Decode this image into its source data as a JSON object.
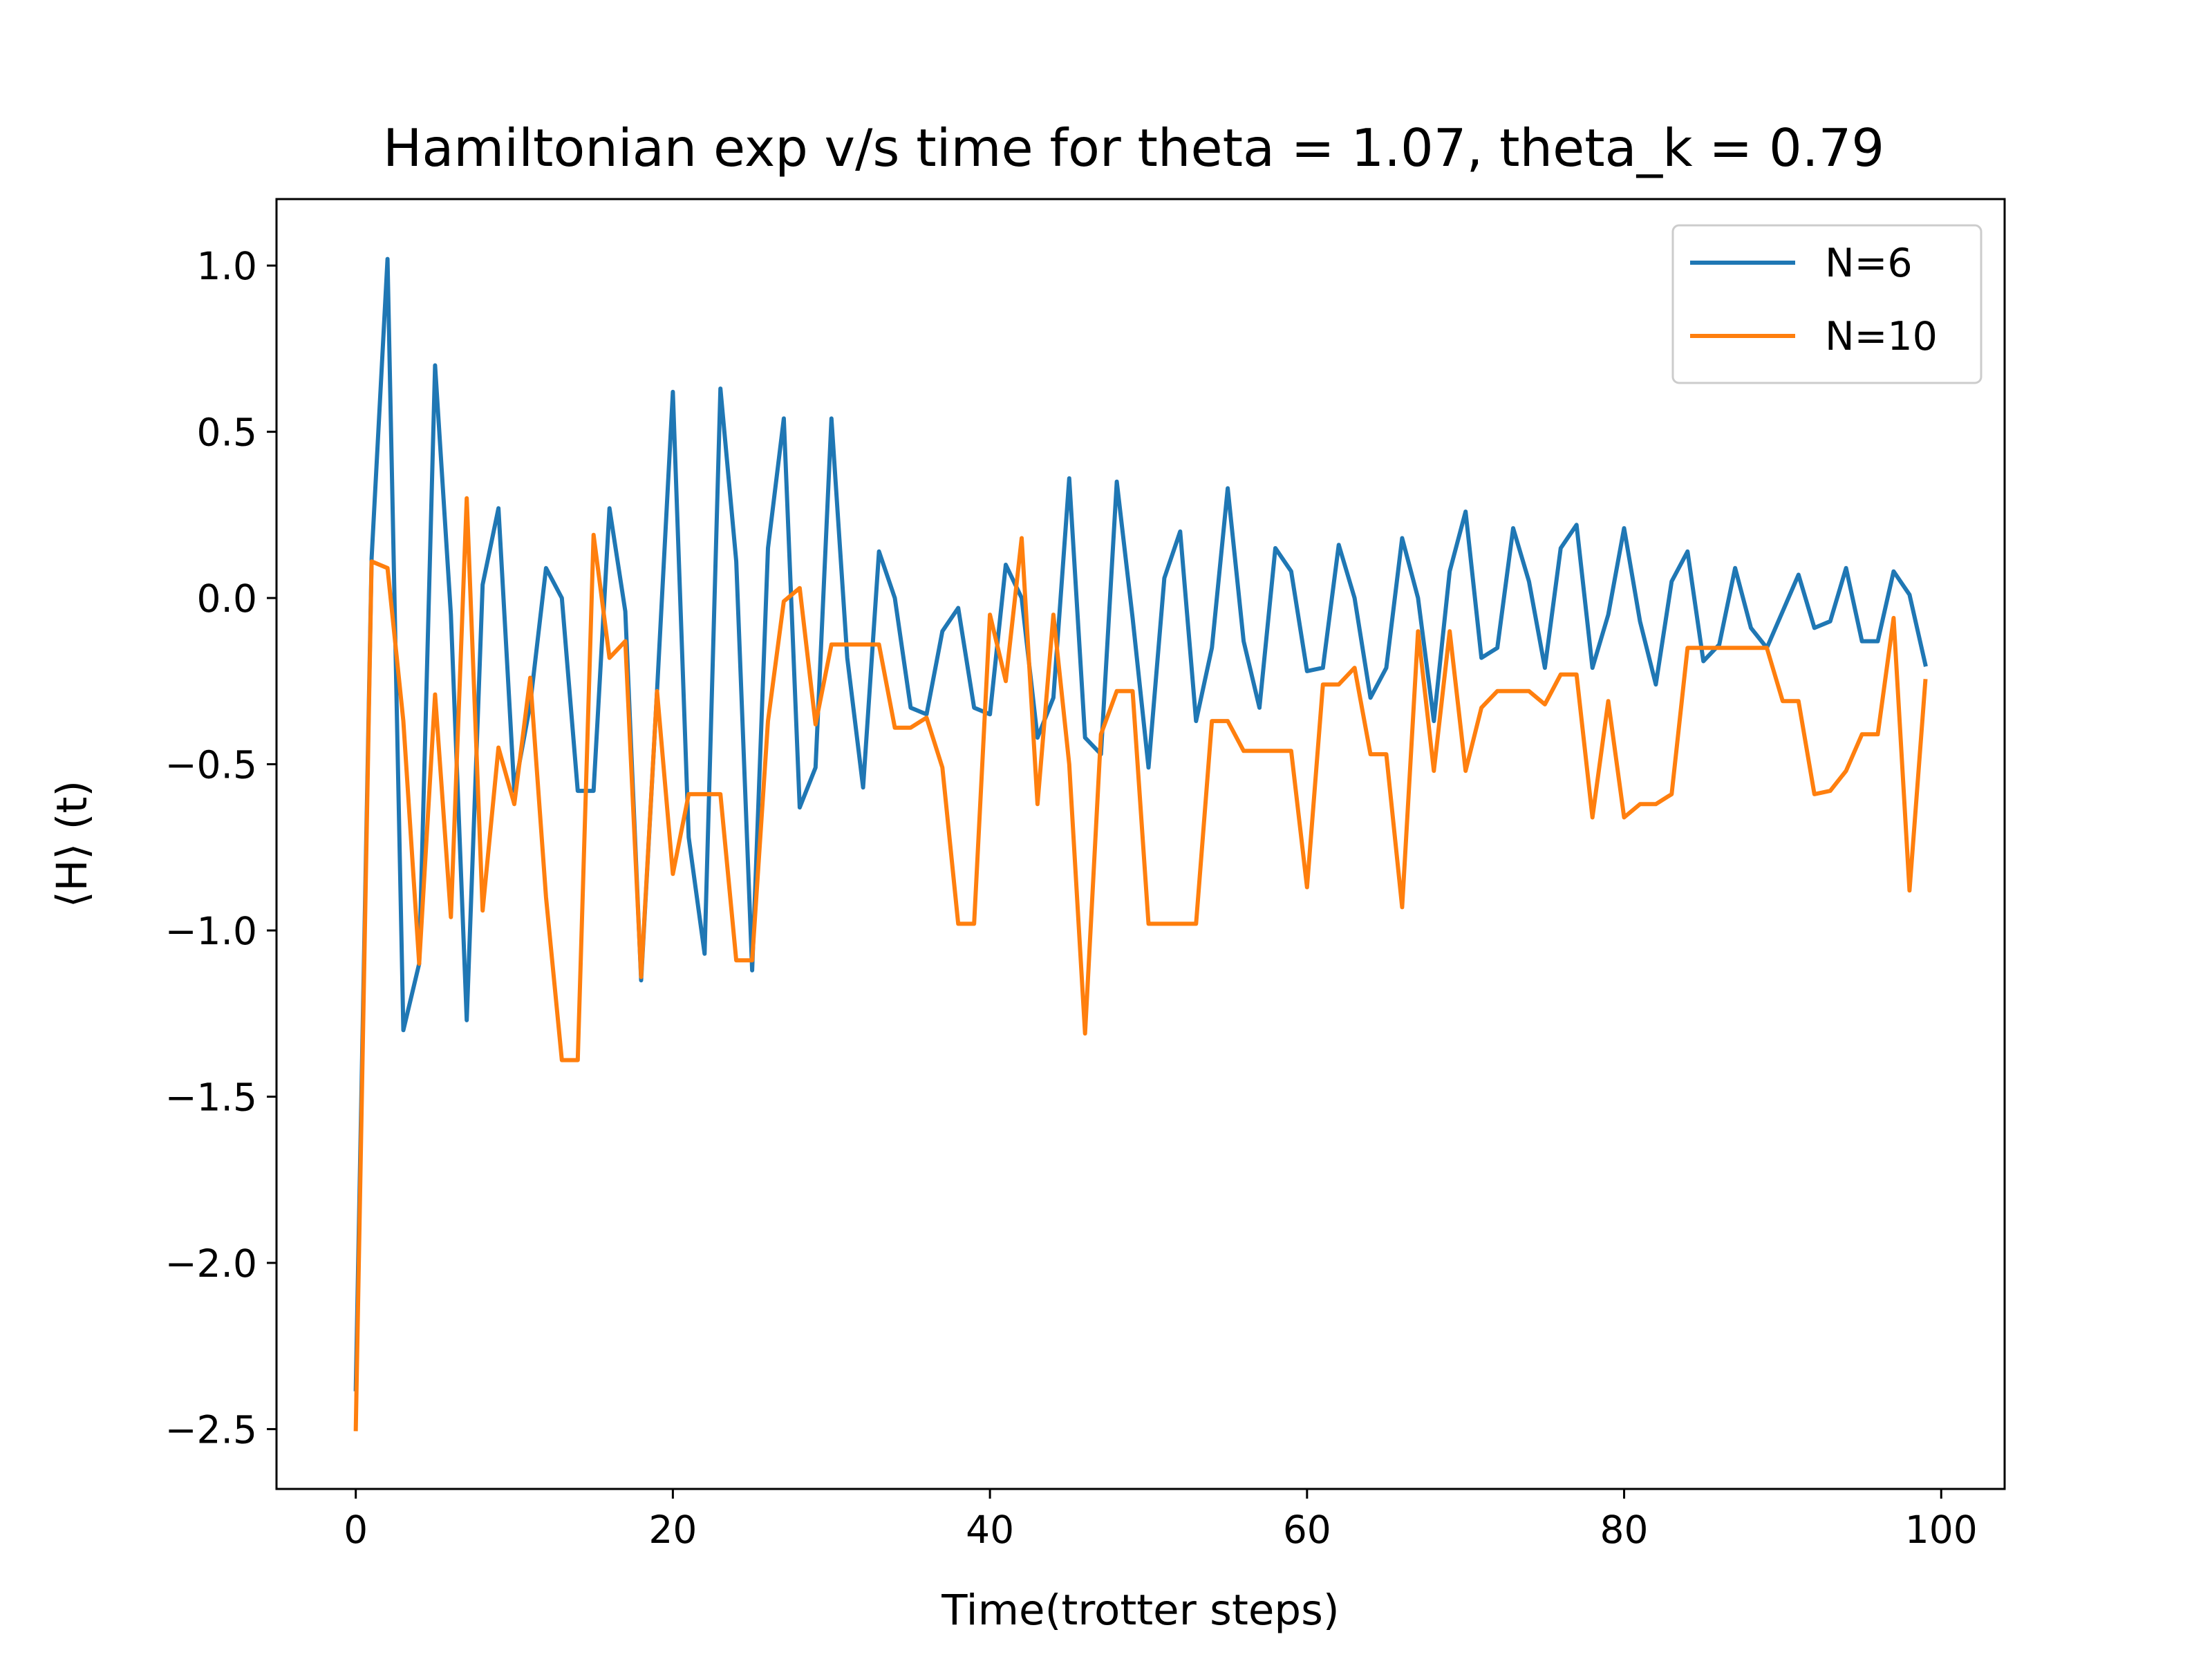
{
  "chart_data": {
    "type": "line",
    "title": "Hamiltonian exp v/s time for theta = 1.07, theta_k = 0.79",
    "xlabel": "Time(trotter steps)",
    "ylabel": "⟨H⟩ (t)",
    "xlim": [
      -5,
      104
    ],
    "ylim": [
      -2.68,
      1.2
    ],
    "xticks": [
      0,
      20,
      40,
      60,
      80,
      100
    ],
    "xtick_labels": [
      "0",
      "20",
      "40",
      "60",
      "80",
      "100"
    ],
    "yticks": [
      1.0,
      0.5,
      0.0,
      -0.5,
      -1.0,
      -1.5,
      -2.0,
      -2.5
    ],
    "ytick_labels": [
      "1.0",
      "0.5",
      "0.0",
      "−0.5",
      "−1.0",
      "−1.5",
      "−2.0",
      "−2.5"
    ],
    "grid": false,
    "legend_position": "top-right",
    "series": [
      {
        "name": "N=6",
        "color": "#1f77b4",
        "x": [
          0,
          1,
          2,
          3,
          4,
          5,
          6,
          7,
          8,
          9,
          10,
          11,
          12,
          13,
          14,
          15,
          16,
          17,
          18,
          19,
          20,
          21,
          22,
          23,
          24,
          25,
          26,
          27,
          28,
          29,
          30,
          31,
          32,
          33,
          34,
          35,
          36,
          37,
          38,
          39,
          40,
          41,
          42,
          43,
          44,
          45,
          46,
          47,
          48,
          49,
          50,
          51,
          52,
          53,
          54,
          55,
          56,
          57,
          58,
          59,
          60,
          61,
          62,
          63,
          64,
          65,
          66,
          67,
          68,
          69,
          70,
          71,
          72,
          73,
          74,
          75,
          76,
          77,
          78,
          79,
          80,
          81,
          82,
          83,
          84,
          85,
          86,
          87,
          88,
          89,
          90,
          91,
          92,
          93,
          94,
          95,
          96,
          97,
          98,
          99
        ],
        "y": [
          -2.38,
          0.12,
          1.02,
          -1.3,
          -1.1,
          0.7,
          -0.05,
          -1.27,
          0.04,
          0.27,
          -0.58,
          -0.32,
          0.09,
          0.0,
          -0.58,
          -0.58,
          0.27,
          -0.04,
          -1.15,
          -0.28,
          0.62,
          -0.72,
          -1.07,
          0.63,
          0.11,
          -1.12,
          0.15,
          0.54,
          -0.63,
          -0.51,
          0.54,
          -0.18,
          -0.57,
          0.14,
          0.0,
          -0.33,
          -0.35,
          -0.1,
          -0.03,
          -0.33,
          -0.35,
          0.1,
          0.0,
          -0.42,
          -0.3,
          0.36,
          -0.42,
          -0.47,
          0.35,
          -0.06,
          -0.51,
          0.06,
          0.2,
          -0.37,
          -0.15,
          0.33,
          -0.13,
          -0.33,
          0.15,
          0.08,
          -0.22,
          -0.21,
          0.16,
          0.0,
          -0.3,
          -0.21,
          0.18,
          0.0,
          -0.37,
          0.08,
          0.26,
          -0.18,
          -0.15,
          0.21,
          0.05,
          -0.21,
          0.15,
          0.22,
          -0.21,
          -0.05,
          0.21,
          -0.07,
          -0.26,
          0.05,
          0.14,
          -0.19,
          -0.14,
          0.09,
          -0.09,
          -0.15,
          -0.04,
          0.07,
          -0.09,
          -0.07,
          0.09,
          -0.13,
          -0.13,
          0.08,
          0.01,
          -0.2
        ]
      },
      {
        "name": "N=10",
        "color": "#ff7f0e",
        "x": [
          0,
          1,
          2,
          3,
          4,
          5,
          6,
          7,
          8,
          9,
          10,
          11,
          12,
          13,
          14,
          15,
          16,
          17,
          18,
          19,
          20,
          21,
          22,
          23,
          24,
          25,
          26,
          27,
          28,
          29,
          30,
          31,
          32,
          33,
          34,
          35,
          36,
          37,
          38,
          39,
          40,
          41,
          42,
          43,
          44,
          45,
          46,
          47,
          48,
          49,
          50,
          51,
          52,
          53,
          54,
          55,
          56,
          57,
          58,
          59,
          60,
          61,
          62,
          63,
          64,
          65,
          66,
          67,
          68,
          69,
          70,
          71,
          72,
          73,
          74,
          75,
          76,
          77,
          78,
          79,
          80,
          81,
          82,
          83,
          84,
          85,
          86,
          87,
          88,
          89,
          90,
          91,
          92,
          93,
          94,
          95,
          96,
          97,
          98,
          99
        ],
        "y": [
          -2.5,
          0.11,
          0.09,
          -0.37,
          -1.1,
          -0.29,
          -0.96,
          0.3,
          -0.94,
          -0.45,
          -0.62,
          -0.24,
          -0.9,
          -1.39,
          -1.39,
          0.19,
          -0.18,
          -0.13,
          -1.14,
          -0.28,
          -0.83,
          -0.59,
          -0.59,
          -0.59,
          -1.09,
          -1.09,
          -0.37,
          -0.01,
          0.03,
          -0.38,
          -0.14,
          -0.14,
          -0.14,
          -0.14,
          -0.39,
          -0.39,
          -0.36,
          -0.51,
          -0.98,
          -0.98,
          -0.05,
          -0.25,
          0.18,
          -0.62,
          -0.05,
          -0.5,
          -1.31,
          -0.41,
          -0.28,
          -0.28,
          -0.98,
          -0.98,
          -0.98,
          -0.98,
          -0.37,
          -0.37,
          -0.46,
          -0.46,
          -0.46,
          -0.46,
          -0.87,
          -0.26,
          -0.26,
          -0.21,
          -0.47,
          -0.47,
          -0.93,
          -0.1,
          -0.52,
          -0.1,
          -0.52,
          -0.33,
          -0.28,
          -0.28,
          -0.28,
          -0.32,
          -0.23,
          -0.23,
          -0.66,
          -0.31,
          -0.66,
          -0.62,
          -0.62,
          -0.59,
          -0.15,
          -0.15,
          -0.15,
          -0.15,
          -0.15,
          -0.15,
          -0.31,
          -0.31,
          -0.59,
          -0.58,
          -0.52,
          -0.41,
          -0.41,
          -0.06,
          -0.88,
          -0.25
        ]
      }
    ]
  }
}
